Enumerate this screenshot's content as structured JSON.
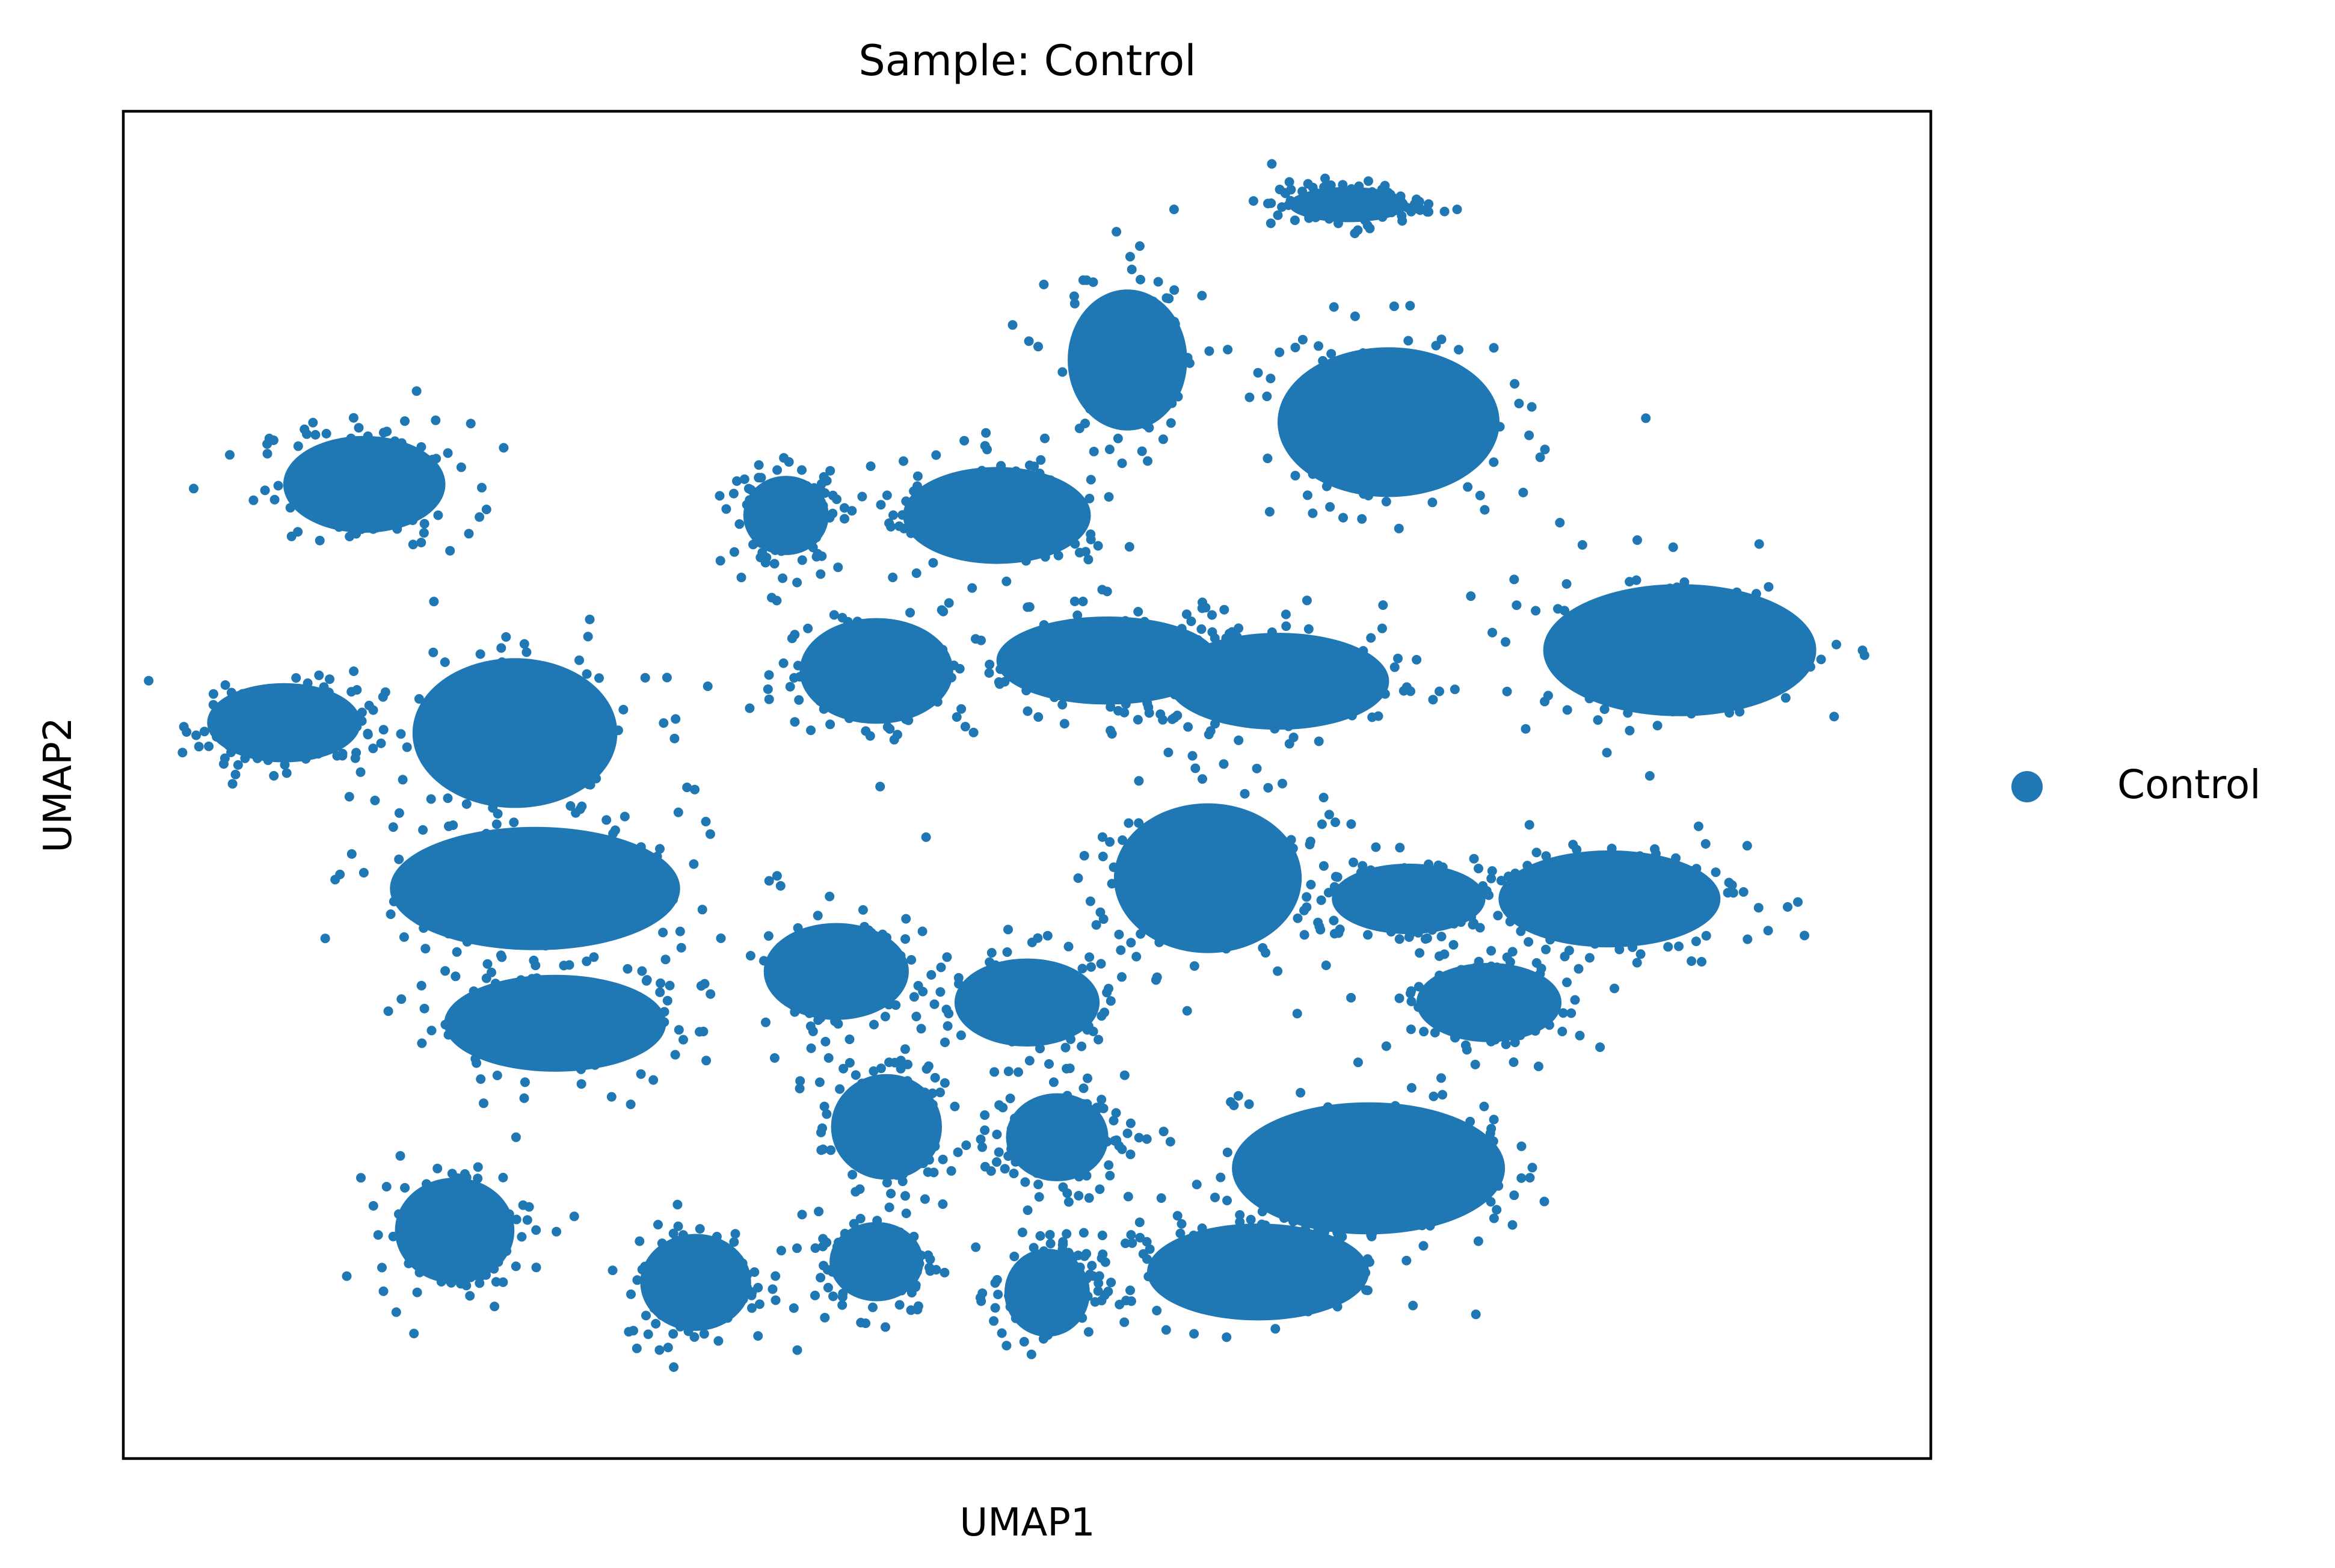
{
  "chart_data": {
    "type": "scatter",
    "title": "Sample: Control",
    "xlabel": "UMAP1",
    "ylabel": "UMAP2",
    "xticks": [],
    "yticks": [],
    "grid": false,
    "legend": {
      "placement": "right-outside"
    },
    "series": [
      {
        "name": "Control",
        "color": "#1f77b4",
        "note_density": "dense embedding, clusters listed as centers with spread in UMAP units",
        "clusters": [
          {
            "cx": 2.4,
            "cy": 8.2,
            "rx": 0.95,
            "ry": 0.55
          },
          {
            "cx": 1.6,
            "cy": 5.9,
            "rx": 0.9,
            "ry": 0.45
          },
          {
            "cx": 3.9,
            "cy": 5.8,
            "rx": 1.2,
            "ry": 0.85
          },
          {
            "cx": 4.1,
            "cy": 4.3,
            "rx": 1.7,
            "ry": 0.7
          },
          {
            "cx": 4.3,
            "cy": 3.0,
            "rx": 1.3,
            "ry": 0.55
          },
          {
            "cx": 6.6,
            "cy": 7.9,
            "rx": 0.5,
            "ry": 0.45
          },
          {
            "cx": 7.5,
            "cy": 6.4,
            "rx": 0.9,
            "ry": 0.6
          },
          {
            "cx": 8.7,
            "cy": 7.9,
            "rx": 1.1,
            "ry": 0.55
          },
          {
            "cx": 9.8,
            "cy": 6.5,
            "rx": 1.3,
            "ry": 0.5
          },
          {
            "cx": 10.0,
            "cy": 9.4,
            "rx": 0.7,
            "ry": 0.8
          },
          {
            "cx": 12.6,
            "cy": 8.8,
            "rx": 1.3,
            "ry": 0.85
          },
          {
            "cx": 11.5,
            "cy": 6.3,
            "rx": 1.3,
            "ry": 0.55
          },
          {
            "cx": 15.5,
            "cy": 6.6,
            "rx": 1.6,
            "ry": 0.75
          },
          {
            "cx": 14.8,
            "cy": 4.2,
            "rx": 1.3,
            "ry": 0.55
          },
          {
            "cx": 12.8,
            "cy": 4.2,
            "rx": 0.9,
            "ry": 0.4
          },
          {
            "cx": 10.8,
            "cy": 4.4,
            "rx": 1.1,
            "ry": 0.85
          },
          {
            "cx": 9.0,
            "cy": 3.2,
            "rx": 0.85,
            "ry": 0.5
          },
          {
            "cx": 7.1,
            "cy": 3.5,
            "rx": 0.85,
            "ry": 0.55
          },
          {
            "cx": 7.6,
            "cy": 2.0,
            "rx": 0.65,
            "ry": 0.6
          },
          {
            "cx": 9.3,
            "cy": 1.9,
            "rx": 0.6,
            "ry": 0.5
          },
          {
            "cx": 12.4,
            "cy": 1.6,
            "rx": 1.6,
            "ry": 0.75
          },
          {
            "cx": 13.6,
            "cy": 3.2,
            "rx": 0.85,
            "ry": 0.45
          },
          {
            "cx": 11.3,
            "cy": 0.6,
            "rx": 1.3,
            "ry": 0.55
          },
          {
            "cx": 9.2,
            "cy": 0.4,
            "rx": 0.5,
            "ry": 0.5
          },
          {
            "cx": 7.5,
            "cy": 0.7,
            "rx": 0.55,
            "ry": 0.45
          },
          {
            "cx": 5.7,
            "cy": 0.5,
            "rx": 0.65,
            "ry": 0.55
          },
          {
            "cx": 3.3,
            "cy": 1.0,
            "rx": 0.7,
            "ry": 0.6
          },
          {
            "cx": 12.2,
            "cy": 10.9,
            "rx": 0.7,
            "ry": 0.2
          }
        ]
      }
    ],
    "xlim": [
      0,
      18
    ],
    "ylim": [
      -1.2,
      11.8
    ]
  }
}
